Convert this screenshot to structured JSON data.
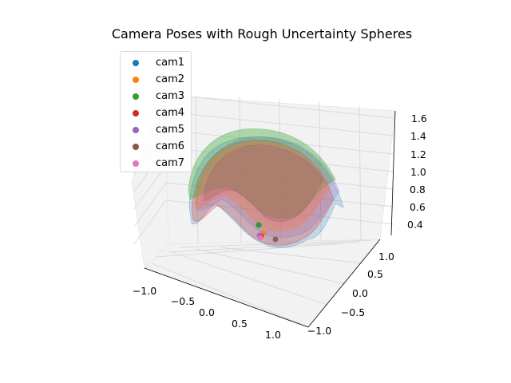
{
  "chart_data": {
    "type": "scatter",
    "projection": "3d",
    "title": "Camera Poses with Rough Uncertainty Spheres",
    "xlabel": "",
    "ylabel": "",
    "zlabel": "",
    "xlim": [
      -1.2,
      1.2
    ],
    "ylim": [
      -1.2,
      1.2
    ],
    "zlim": [
      0.35,
      1.65
    ],
    "x_ticks": [
      "−1.0",
      "−0.5",
      "0.0",
      "0.5",
      "1.0"
    ],
    "y_ticks": [
      "−1.0",
      "−0.5",
      "0.0",
      "0.5",
      "1.0"
    ],
    "z_ticks": [
      "0.4",
      "0.6",
      "0.8",
      "1.0",
      "1.2",
      "1.4",
      "1.6"
    ],
    "grid": true,
    "legend_position": "top-left",
    "series": [
      {
        "name": "cam1",
        "color": "#1f77b4",
        "x": 0.1,
        "y": -0.05,
        "z": 0.52
      },
      {
        "name": "cam2",
        "color": "#ff7f0e",
        "x": 0.05,
        "y": 0.02,
        "z": 0.55
      },
      {
        "name": "cam3",
        "color": "#2ca02c",
        "x": -0.05,
        "y": 0.1,
        "z": 0.62
      },
      {
        "name": "cam4",
        "color": "#d62728",
        "x": 0.08,
        "y": -0.08,
        "z": 0.48
      },
      {
        "name": "cam5",
        "color": "#9467bd",
        "x": 0.02,
        "y": -0.1,
        "z": 0.47
      },
      {
        "name": "cam6",
        "color": "#8c564b",
        "x": 0.25,
        "y": 0.05,
        "z": 0.45
      },
      {
        "name": "cam7",
        "color": "#e377c2",
        "x": 0.0,
        "y": 0.0,
        "z": 0.5
      }
    ]
  }
}
